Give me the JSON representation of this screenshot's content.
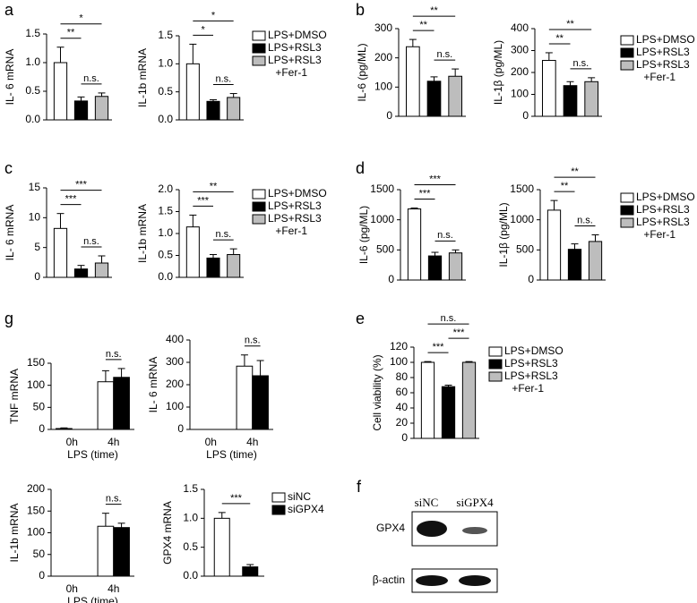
{
  "chart_data": [
    {
      "type": "bar",
      "panel": "a",
      "ylabel": "IL- 6 mRNA",
      "categories": [
        null
      ],
      "ylim": [
        0,
        1.5
      ],
      "yticks": [
        {
          "value": 0,
          "label": "0.0"
        },
        {
          "value": 0.5,
          "label": "0.5"
        },
        {
          "value": 1,
          "label": "1.0"
        },
        {
          "value": 1.5,
          "label": "1.5"
        }
      ],
      "series": [
        {
          "color": "#ffffff",
          "values": [
            1.0
          ],
          "errors": [
            0.27
          ]
        },
        {
          "color": "#000000",
          "values": [
            0.33
          ],
          "errors": [
            0.07
          ]
        },
        {
          "color": "#bdbdbd",
          "values": [
            0.41
          ],
          "errors": [
            0.06
          ]
        }
      ],
      "annotations": [
        {
          "text": "n.s.",
          "from": 1,
          "to": 2
        },
        {
          "text": "**",
          "from": 0,
          "to": 1
        },
        {
          "text": "*",
          "from": 0,
          "to": 2
        }
      ]
    },
    {
      "type": "bar",
      "ylabel": "IL-1b mRNA",
      "categories": [
        null
      ],
      "ylim": [
        0,
        1.5
      ],
      "yticks": [
        {
          "value": 0,
          "label": "0.0"
        },
        {
          "value": 0.5,
          "label": "0.5"
        },
        {
          "value": 1,
          "label": "1.0"
        },
        {
          "value": 1.5,
          "label": "1.5"
        }
      ],
      "legend": true,
      "series": [
        {
          "name": "LPS+DMSO",
          "color": "#ffffff",
          "values": [
            1.0
          ],
          "errors": [
            0.35
          ]
        },
        {
          "name": "LPS+RSL3",
          "color": "#000000",
          "values": [
            0.33
          ],
          "errors": [
            0.03
          ]
        },
        {
          "name": "LPS+RSL3 +Fer-1",
          "color": "#bdbdbd",
          "values": [
            0.4
          ],
          "errors": [
            0.07
          ]
        }
      ],
      "annotations": [
        {
          "text": "n.s.",
          "from": 1,
          "to": 2
        },
        {
          "text": "*",
          "from": 0,
          "to": 1
        },
        {
          "text": "*",
          "from": 0,
          "to": 2
        }
      ]
    },
    {
      "type": "bar",
      "panel": "b",
      "ylabel": "IL-6 (pg/ML)",
      "categories": [
        null
      ],
      "ylim": [
        0,
        300
      ],
      "yticks": [
        0,
        100,
        200,
        300
      ],
      "series": [
        {
          "color": "#ffffff",
          "values": [
            238
          ],
          "errors": [
            25
          ]
        },
        {
          "color": "#000000",
          "values": [
            120
          ],
          "errors": [
            15
          ]
        },
        {
          "color": "#bdbdbd",
          "values": [
            137
          ],
          "errors": [
            25
          ]
        }
      ],
      "annotations": [
        {
          "text": "n.s.",
          "from": 1,
          "to": 2
        },
        {
          "text": "**",
          "from": 0,
          "to": 1
        },
        {
          "text": "**",
          "from": 0,
          "to": 2
        }
      ]
    },
    {
      "type": "bar",
      "ylabel": "IL-1β (pg/ML)",
      "categories": [
        null
      ],
      "ylim": [
        0,
        400
      ],
      "yticks": [
        0,
        100,
        200,
        300,
        400
      ],
      "legend": true,
      "series": [
        {
          "name": "LPS+DMSO",
          "color": "#ffffff",
          "values": [
            255
          ],
          "errors": [
            35
          ]
        },
        {
          "name": "LPS+RSL3",
          "color": "#000000",
          "values": [
            140
          ],
          "errors": [
            18
          ]
        },
        {
          "name": "LPS+RSL3 +Fer-1",
          "color": "#bdbdbd",
          "values": [
            158
          ],
          "errors": [
            18
          ]
        }
      ],
      "annotations": [
        {
          "text": "n.s.",
          "from": 1,
          "to": 2
        },
        {
          "text": "**",
          "from": 0,
          "to": 1
        },
        {
          "text": "**",
          "from": 0,
          "to": 2
        }
      ]
    },
    {
      "type": "bar",
      "panel": "c",
      "ylabel": "IL- 6 mRNA",
      "categories": [
        null
      ],
      "ylim": [
        0,
        15
      ],
      "yticks": [
        0,
        5,
        10,
        15
      ],
      "series": [
        {
          "color": "#ffffff",
          "values": [
            8.2
          ],
          "errors": [
            2.5
          ]
        },
        {
          "color": "#000000",
          "values": [
            1.4
          ],
          "errors": [
            0.6
          ]
        },
        {
          "color": "#bdbdbd",
          "values": [
            2.4
          ],
          "errors": [
            1.2
          ]
        }
      ],
      "annotations": [
        {
          "text": "n.s.",
          "from": 1,
          "to": 2
        },
        {
          "text": "***",
          "from": 0,
          "to": 1
        },
        {
          "text": "***",
          "from": 0,
          "to": 2
        }
      ]
    },
    {
      "type": "bar",
      "ylabel": "IL-1b mRNA",
      "categories": [
        null
      ],
      "ylim": [
        0,
        2
      ],
      "yticks": [
        {
          "value": 0,
          "label": "0.0"
        },
        {
          "value": 0.5,
          "label": "0.5"
        },
        {
          "value": 1,
          "label": "1.0"
        },
        {
          "value": 1.5,
          "label": "1.5"
        },
        {
          "value": 2,
          "label": "2.0"
        }
      ],
      "legend": true,
      "series": [
        {
          "name": "LPS+DMSO",
          "color": "#ffffff",
          "values": [
            1.15
          ],
          "errors": [
            0.27
          ]
        },
        {
          "name": "LPS+RSL3",
          "color": "#000000",
          "values": [
            0.44
          ],
          "errors": [
            0.08
          ]
        },
        {
          "name": "LPS+RSL3 +Fer-1",
          "color": "#bdbdbd",
          "values": [
            0.52
          ],
          "errors": [
            0.13
          ]
        }
      ],
      "annotations": [
        {
          "text": "n.s.",
          "from": 1,
          "to": 2
        },
        {
          "text": "***",
          "from": 0,
          "to": 1
        },
        {
          "text": "**",
          "from": 0,
          "to": 2
        }
      ]
    },
    {
      "type": "bar",
      "panel": "d",
      "ylabel": "IL-6 (pg/ML)",
      "categories": [
        null
      ],
      "ylim": [
        0,
        1500
      ],
      "yticks": [
        0,
        500,
        1000,
        1500
      ],
      "series": [
        {
          "color": "#ffffff",
          "values": [
            1180
          ],
          "errors": [
            15
          ]
        },
        {
          "color": "#000000",
          "values": [
            400
          ],
          "errors": [
            60
          ]
        },
        {
          "color": "#bdbdbd",
          "values": [
            450
          ],
          "errors": [
            50
          ]
        }
      ],
      "annotations": [
        {
          "text": "n.s.",
          "from": 1,
          "to": 2
        },
        {
          "text": "***",
          "from": 0,
          "to": 1
        },
        {
          "text": "***",
          "from": 0,
          "to": 2
        }
      ]
    },
    {
      "type": "bar",
      "ylabel": "IL-1β (pg/ML)",
      "categories": [
        null
      ],
      "ylim": [
        0,
        1500
      ],
      "yticks": [
        0,
        500,
        1000,
        1500
      ],
      "legend": true,
      "series": [
        {
          "name": "LPS+DMSO",
          "color": "#ffffff",
          "values": [
            1160
          ],
          "errors": [
            160
          ]
        },
        {
          "name": "LPS+RSL3",
          "color": "#000000",
          "values": [
            510
          ],
          "errors": [
            90
          ]
        },
        {
          "name": "LPS+RSL3 +Fer-1",
          "color": "#bdbdbd",
          "values": [
            640
          ],
          "errors": [
            110
          ]
        }
      ],
      "annotations": [
        {
          "text": "n.s.",
          "from": 1,
          "to": 2
        },
        {
          "text": "**",
          "from": 0,
          "to": 1
        },
        {
          "text": "**",
          "from": 0,
          "to": 2
        }
      ]
    },
    {
      "type": "bar",
      "panel": "g",
      "ylabel": "TNF mRNA",
      "xlabel": "LPS (time)",
      "categories": [
        "0h",
        "4h"
      ],
      "ylim": [
        0,
        150
      ],
      "yticks": [
        0,
        50,
        100,
        150
      ],
      "series": [
        {
          "color": "#ffffff",
          "values": [
            2,
            108
          ],
          "errors": [
            1.5,
            25
          ]
        },
        {
          "color": "#000000",
          "values": [
            0,
            118
          ],
          "errors": [
            0,
            20
          ]
        }
      ],
      "annotations": [
        {
          "text": "n.s.",
          "from": 2,
          "to": 3
        }
      ]
    },
    {
      "type": "bar",
      "ylabel": "IL- 6 mRNA",
      "xlabel": "LPS (time)",
      "categories": [
        "0h",
        "4h"
      ],
      "ylim": [
        0,
        400
      ],
      "yticks": [
        0,
        100,
        200,
        300,
        400
      ],
      "series": [
        {
          "color": "#ffffff",
          "values": [
            0,
            283
          ],
          "errors": [
            0,
            50
          ]
        },
        {
          "color": "#000000",
          "values": [
            0,
            240
          ],
          "errors": [
            0,
            68
          ]
        }
      ],
      "annotations": [
        {
          "text": "n.s.",
          "from": 2,
          "to": 3
        }
      ]
    },
    {
      "type": "bar",
      "ylabel": "IL-1b mRNA",
      "xlabel": "LPS (time)",
      "categories": [
        "0h",
        "4h"
      ],
      "ylim": [
        0,
        200
      ],
      "yticks": [
        0,
        50,
        100,
        150,
        200
      ],
      "series": [
        {
          "color": "#ffffff",
          "values": [
            0,
            115
          ],
          "errors": [
            0,
            30
          ]
        },
        {
          "color": "#000000",
          "values": [
            0,
            112
          ],
          "errors": [
            0,
            10
          ]
        }
      ],
      "annotations": [
        {
          "text": "n.s.",
          "from": 2,
          "to": 3
        }
      ]
    },
    {
      "type": "bar",
      "ylabel": "GPX4 mRNA",
      "categories": [
        null
      ],
      "ylim": [
        0,
        1.5
      ],
      "yticks": [
        {
          "value": 0,
          "label": "0.0"
        },
        {
          "value": 0.5,
          "label": "0.5"
        },
        {
          "value": 1,
          "label": "1.0"
        },
        {
          "value": 1.5,
          "label": "1.5"
        }
      ],
      "legend": true,
      "series": [
        {
          "name": "siNC",
          "color": "#ffffff",
          "values": [
            1.0
          ],
          "errors": [
            0.1
          ]
        },
        {
          "name": "siGPX4",
          "color": "#000000",
          "values": [
            0.16
          ],
          "errors": [
            0.04
          ]
        }
      ],
      "annotations": [
        {
          "text": "***",
          "from": 0,
          "to": 1
        }
      ]
    },
    {
      "type": "bar",
      "panel": "e",
      "ylabel": "Cell viability (%)",
      "categories": [
        null
      ],
      "ylim": [
        0,
        120
      ],
      "yticks": [
        0,
        20,
        40,
        60,
        80,
        100,
        120
      ],
      "legend": true,
      "series": [
        {
          "name": "LPS+DMSO",
          "color": "#ffffff",
          "values": [
            100
          ],
          "errors": [
            1
          ]
        },
        {
          "name": "LPS+RSL3",
          "color": "#000000",
          "values": [
            68
          ],
          "errors": [
            2
          ]
        },
        {
          "name": "LPS+RSL3 +Fer-1",
          "color": "#bdbdbd",
          "values": [
            100
          ],
          "errors": [
            1
          ]
        }
      ],
      "annotations": [
        {
          "text": "***",
          "from": 0,
          "to": 1
        },
        {
          "text": "***",
          "from": 1,
          "to": 2
        },
        {
          "text": "n.s.",
          "from": 0,
          "to": 2
        }
      ]
    }
  ],
  "blot": {
    "panel": "f",
    "lanes": [
      "siNC",
      "siGPX4"
    ],
    "rows": [
      "GPX4",
      "β-actin"
    ]
  }
}
